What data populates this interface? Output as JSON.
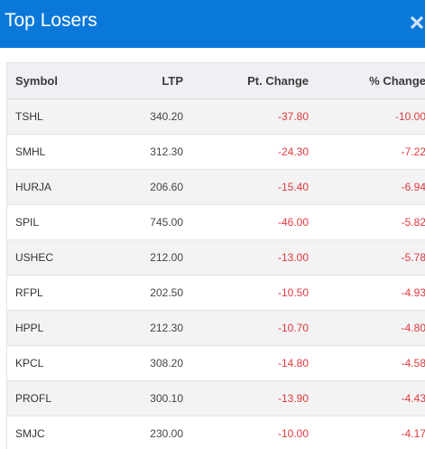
{
  "header": {
    "title": "Top Losers",
    "close_icon": "close-icon",
    "background": "#0a78d8"
  },
  "table": {
    "columns": [
      "Symbol",
      "LTP",
      "Pt. Change",
      "% Change"
    ],
    "rows": [
      {
        "symbol": "TSHL",
        "ltp": "340.20",
        "pt_change": "-37.80",
        "pct_change": "-10.00"
      },
      {
        "symbol": "SMHL",
        "ltp": "312.30",
        "pt_change": "-24.30",
        "pct_change": "-7.22"
      },
      {
        "symbol": "HURJA",
        "ltp": "206.60",
        "pt_change": "-15.40",
        "pct_change": "-6.94"
      },
      {
        "symbol": "SPIL",
        "ltp": "745.00",
        "pt_change": "-46.00",
        "pct_change": "-5.82"
      },
      {
        "symbol": "USHEC",
        "ltp": "212.00",
        "pt_change": "-13.00",
        "pct_change": "-5.78"
      },
      {
        "symbol": "RFPL",
        "ltp": "202.50",
        "pt_change": "-10.50",
        "pct_change": "-4.93"
      },
      {
        "symbol": "HPPL",
        "ltp": "212.30",
        "pt_change": "-10.70",
        "pct_change": "-4.80"
      },
      {
        "symbol": "KPCL",
        "ltp": "308.20",
        "pt_change": "-14.80",
        "pct_change": "-4.58"
      },
      {
        "symbol": "PROFL",
        "ltp": "300.10",
        "pt_change": "-13.90",
        "pct_change": "-4.43"
      },
      {
        "symbol": "SMJC",
        "ltp": "230.00",
        "pt_change": "-10.00",
        "pct_change": "-4.17"
      }
    ],
    "negative_color": "#e0393e"
  }
}
